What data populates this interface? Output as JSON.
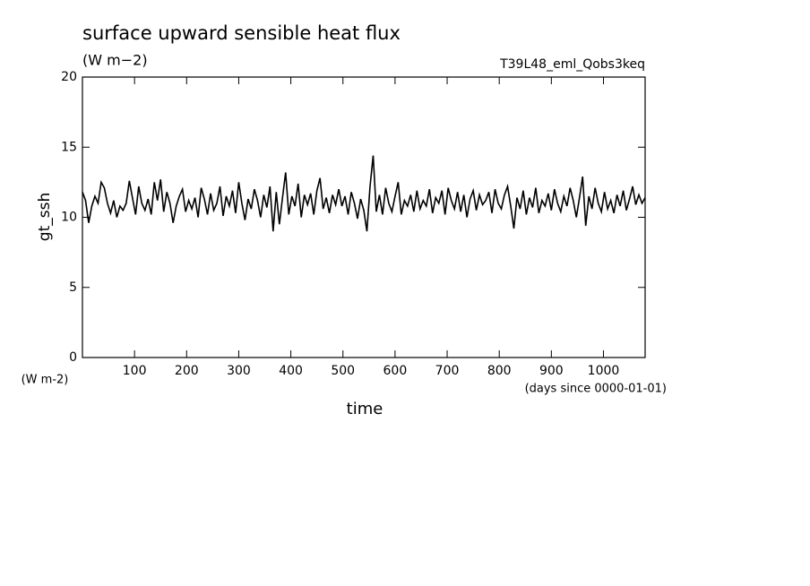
{
  "chart_data": {
    "type": "line",
    "title": "surface upward sensible heat flux",
    "subtitle": "(W m−2)",
    "annotation": "T39L48_eml_Qobs3keq",
    "y_label": "gt_ssh",
    "y_units": "(W m-2)",
    "x_label": "time",
    "x_units": "(days since 0000-01-01)",
    "xlim": [
      0,
      1080
    ],
    "xticks": [
      100,
      200,
      300,
      400,
      500,
      600,
      700,
      800,
      900,
      1000
    ],
    "ylim": [
      0,
      20
    ],
    "yticks": [
      0,
      5,
      10,
      15,
      20
    ],
    "x": [
      0,
      6,
      12,
      18,
      24,
      30,
      36,
      42,
      48,
      54,
      60,
      66,
      72,
      78,
      84,
      90,
      96,
      102,
      108,
      114,
      120,
      126,
      132,
      138,
      144,
      150,
      156,
      162,
      168,
      174,
      180,
      186,
      192,
      198,
      204,
      210,
      216,
      222,
      228,
      234,
      240,
      246,
      252,
      258,
      264,
      270,
      276,
      282,
      288,
      294,
      300,
      306,
      312,
      318,
      324,
      330,
      336,
      342,
      348,
      354,
      360,
      366,
      372,
      378,
      384,
      390,
      396,
      402,
      408,
      414,
      420,
      426,
      432,
      438,
      444,
      450,
      456,
      462,
      468,
      474,
      480,
      486,
      492,
      498,
      504,
      510,
      516,
      522,
      528,
      534,
      540,
      546,
      552,
      558,
      564,
      570,
      576,
      582,
      588,
      594,
      600,
      606,
      612,
      618,
      624,
      630,
      636,
      642,
      648,
      654,
      660,
      666,
      672,
      678,
      684,
      690,
      696,
      702,
      708,
      714,
      720,
      726,
      732,
      738,
      744,
      750,
      756,
      762,
      768,
      774,
      780,
      786,
      792,
      798,
      804,
      810,
      816,
      822,
      828,
      834,
      840,
      846,
      852,
      858,
      864,
      870,
      876,
      882,
      888,
      894,
      900,
      906,
      912,
      918,
      924,
      930,
      936,
      942,
      948,
      954,
      960,
      966,
      972,
      978,
      984,
      990,
      996,
      1002,
      1008,
      1014,
      1020,
      1026,
      1032,
      1038,
      1044,
      1050,
      1056,
      1062,
      1068,
      1074,
      1080
    ],
    "series": [
      {
        "color": "#000000",
        "values": [
          11.8,
          11.2,
          9.6,
          10.8,
          11.5,
          11.0,
          12.5,
          12.1,
          11.0,
          10.3,
          11.2,
          10.0,
          10.8,
          10.5,
          11.0,
          12.6,
          11.4,
          10.2,
          12.2,
          11.0,
          10.5,
          11.3,
          10.2,
          12.5,
          11.2,
          12.7,
          10.4,
          11.8,
          11.0,
          9.6,
          10.8,
          11.5,
          12.0,
          10.4,
          11.2,
          10.6,
          11.4,
          10.0,
          12.1,
          11.3,
          10.2,
          11.7,
          10.5,
          11.0,
          12.2,
          10.1,
          11.5,
          10.8,
          11.9,
          10.3,
          12.5,
          11.0,
          9.8,
          11.3,
          10.6,
          12.0,
          11.2,
          10.0,
          11.6,
          10.7,
          12.2,
          9.0,
          11.8,
          9.5,
          11.4,
          13.2,
          10.2,
          11.5,
          10.8,
          12.4,
          10.0,
          11.6,
          10.9,
          11.7,
          10.2,
          11.9,
          12.8,
          10.6,
          11.4,
          10.3,
          11.6,
          10.9,
          12.0,
          10.8,
          11.5,
          10.2,
          11.8,
          11.0,
          9.9,
          11.3,
          10.5,
          9.0,
          12.2,
          14.4,
          10.4,
          11.6,
          10.2,
          12.1,
          11.0,
          10.4,
          11.5,
          12.5,
          10.2,
          11.2,
          10.8,
          11.6,
          10.4,
          11.9,
          10.6,
          11.2,
          10.8,
          12.0,
          10.3,
          11.4,
          11.0,
          11.9,
          10.2,
          12.1,
          11.2,
          10.6,
          11.8,
          10.4,
          11.6,
          10.0,
          11.3,
          11.9,
          10.5,
          11.6,
          10.9,
          11.2,
          11.8,
          10.3,
          12.0,
          11.0,
          10.6,
          11.6,
          12.2,
          10.8,
          9.2,
          11.4,
          10.6,
          11.9,
          10.2,
          11.4,
          10.7,
          12.1,
          10.3,
          11.2,
          10.8,
          11.7,
          10.5,
          12.0,
          11.0,
          10.4,
          11.5,
          10.8,
          12.1,
          11.2,
          10.0,
          11.4,
          12.9,
          9.4,
          11.5,
          10.6,
          12.1,
          11.0,
          10.4,
          11.8,
          10.6,
          11.2,
          10.3,
          11.6,
          10.8,
          11.9,
          10.5,
          11.3,
          12.2,
          10.9,
          11.6,
          11.0,
          11.4
        ]
      }
    ]
  }
}
